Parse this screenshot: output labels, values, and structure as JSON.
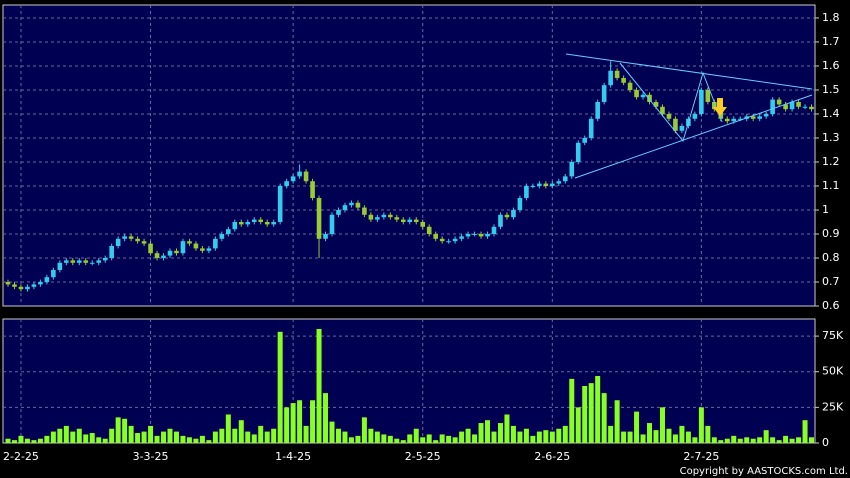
{
  "chart_data": [
    {
      "type": "candlestick",
      "categories": [
        null,
        null,
        "2-2-25",
        null,
        null,
        null,
        null,
        null,
        null,
        null,
        null,
        null,
        null,
        null,
        null,
        null,
        null,
        null,
        null,
        null,
        null,
        null,
        "3-3-25",
        null,
        null,
        null,
        null,
        null,
        null,
        null,
        null,
        null,
        null,
        null,
        null,
        null,
        null,
        null,
        null,
        null,
        null,
        null,
        null,
        null,
        "1-4-25",
        null,
        null,
        null,
        null,
        null,
        null,
        null,
        null,
        null,
        null,
        null,
        null,
        null,
        null,
        null,
        null,
        null,
        null,
        null,
        "2-5-25",
        null,
        null,
        null,
        null,
        null,
        null,
        null,
        null,
        null,
        null,
        null,
        null,
        null,
        null,
        null,
        null,
        null,
        null,
        null,
        "2-6-25",
        null,
        null,
        null,
        null,
        null,
        null,
        null,
        null,
        null,
        null,
        null,
        null,
        null,
        null,
        null,
        null,
        null,
        null,
        null,
        null,
        null,
        null,
        "2-7-25",
        null,
        null,
        null,
        null,
        null,
        null,
        null,
        null,
        null,
        null,
        null,
        null,
        null,
        null,
        null,
        null,
        null
      ],
      "open": [
        0.7,
        0.69,
        0.68,
        0.67,
        0.68,
        0.69,
        0.7,
        0.72,
        0.75,
        0.78,
        0.79,
        0.78,
        0.79,
        0.78,
        0.78,
        0.79,
        0.8,
        0.85,
        0.88,
        0.89,
        0.88,
        0.87,
        0.86,
        0.82,
        0.8,
        0.81,
        0.83,
        0.82,
        0.87,
        0.86,
        0.84,
        0.83,
        0.84,
        0.88,
        0.9,
        0.92,
        0.95,
        0.94,
        0.95,
        0.96,
        0.95,
        0.94,
        0.95,
        1.1,
        1.12,
        1.14,
        1.16,
        1.12,
        1.05,
        0.88,
        0.9,
        0.98,
        1.0,
        1.02,
        1.03,
        1.01,
        0.98,
        0.96,
        0.97,
        0.98,
        0.97,
        0.96,
        0.95,
        0.96,
        0.95,
        0.93,
        0.9,
        0.88,
        0.87,
        0.87,
        0.88,
        0.89,
        0.9,
        0.9,
        0.89,
        0.9,
        0.93,
        0.98,
        0.97,
        1.0,
        1.05,
        1.1,
        1.1,
        1.11,
        1.1,
        1.11,
        1.12,
        1.14,
        1.2,
        1.28,
        1.3,
        1.38,
        1.45,
        1.52,
        1.58,
        1.55,
        1.53,
        1.5,
        1.47,
        1.48,
        1.45,
        1.43,
        1.4,
        1.38,
        1.33,
        1.35,
        1.38,
        1.4,
        1.5,
        1.45,
        1.42,
        1.38,
        1.37,
        1.38,
        1.38,
        1.39,
        1.38,
        1.39,
        1.4,
        1.46,
        1.44,
        1.42,
        1.45,
        1.43,
        1.43
      ],
      "high": [
        0.71,
        0.7,
        0.69,
        0.69,
        0.7,
        0.71,
        0.73,
        0.76,
        0.79,
        0.8,
        0.8,
        0.8,
        0.8,
        0.79,
        0.8,
        0.81,
        0.86,
        0.89,
        0.9,
        0.9,
        0.89,
        0.88,
        0.87,
        0.83,
        0.82,
        0.84,
        0.84,
        0.88,
        0.88,
        0.87,
        0.85,
        0.85,
        0.89,
        0.91,
        0.93,
        0.96,
        0.96,
        0.96,
        0.97,
        0.97,
        0.96,
        0.96,
        1.11,
        1.13,
        1.15,
        1.19,
        1.17,
        1.13,
        1.06,
        0.91,
        0.99,
        1.01,
        1.03,
        1.04,
        1.04,
        1.02,
        0.99,
        0.98,
        0.99,
        0.99,
        0.98,
        0.97,
        0.97,
        0.97,
        0.96,
        0.94,
        0.91,
        0.89,
        0.88,
        0.89,
        0.9,
        0.91,
        0.91,
        0.91,
        0.91,
        0.94,
        0.99,
        0.99,
        1.01,
        1.06,
        1.11,
        1.11,
        1.12,
        1.12,
        1.12,
        1.13,
        1.15,
        1.21,
        1.29,
        1.31,
        1.39,
        1.46,
        1.53,
        1.62,
        1.59,
        1.56,
        1.54,
        1.51,
        1.49,
        1.49,
        1.46,
        1.44,
        1.41,
        1.39,
        1.36,
        1.39,
        1.41,
        1.51,
        1.51,
        1.46,
        1.43,
        1.39,
        1.39,
        1.39,
        1.4,
        1.4,
        1.4,
        1.41,
        1.47,
        1.47,
        1.45,
        1.46,
        1.46,
        1.44,
        1.44
      ],
      "low": [
        0.68,
        0.67,
        0.66,
        0.66,
        0.67,
        0.68,
        0.69,
        0.71,
        0.74,
        0.77,
        0.77,
        0.77,
        0.77,
        0.77,
        0.77,
        0.78,
        0.79,
        0.84,
        0.87,
        0.87,
        0.86,
        0.85,
        0.81,
        0.79,
        0.79,
        0.8,
        0.81,
        0.81,
        0.85,
        0.83,
        0.82,
        0.82,
        0.83,
        0.87,
        0.89,
        0.91,
        0.93,
        0.93,
        0.94,
        0.94,
        0.93,
        0.93,
        0.94,
        1.09,
        1.11,
        1.13,
        1.11,
        1.04,
        0.8,
        0.87,
        0.89,
        0.97,
        0.99,
        1.01,
        1.0,
        0.97,
        0.95,
        0.95,
        0.96,
        0.96,
        0.95,
        0.94,
        0.94,
        0.94,
        0.92,
        0.89,
        0.87,
        0.86,
        0.86,
        0.86,
        0.87,
        0.88,
        0.89,
        0.88,
        0.88,
        0.89,
        0.92,
        0.96,
        0.96,
        0.99,
        1.04,
        1.09,
        1.09,
        1.09,
        1.09,
        1.1,
        1.11,
        1.13,
        1.19,
        1.27,
        1.29,
        1.37,
        1.44,
        1.51,
        1.54,
        1.52,
        1.49,
        1.46,
        1.46,
        1.44,
        1.42,
        1.39,
        1.37,
        1.32,
        1.32,
        1.34,
        1.37,
        1.39,
        1.44,
        1.41,
        1.37,
        1.36,
        1.36,
        1.37,
        1.37,
        1.37,
        1.37,
        1.38,
        1.39,
        1.43,
        1.41,
        1.41,
        1.42,
        1.42,
        1.41
      ],
      "close": [
        0.69,
        0.68,
        0.67,
        0.68,
        0.69,
        0.7,
        0.72,
        0.75,
        0.78,
        0.79,
        0.78,
        0.79,
        0.78,
        0.78,
        0.79,
        0.8,
        0.85,
        0.88,
        0.89,
        0.88,
        0.87,
        0.86,
        0.82,
        0.8,
        0.81,
        0.83,
        0.82,
        0.87,
        0.86,
        0.84,
        0.83,
        0.84,
        0.88,
        0.9,
        0.92,
        0.95,
        0.94,
        0.95,
        0.96,
        0.95,
        0.94,
        0.95,
        1.1,
        1.12,
        1.14,
        1.16,
        1.12,
        1.05,
        0.88,
        0.9,
        0.98,
        1.0,
        1.02,
        1.03,
        1.01,
        0.98,
        0.96,
        0.97,
        0.98,
        0.97,
        0.96,
        0.95,
        0.96,
        0.95,
        0.93,
        0.9,
        0.88,
        0.87,
        0.87,
        0.88,
        0.89,
        0.9,
        0.9,
        0.89,
        0.9,
        0.93,
        0.98,
        0.97,
        1.0,
        1.05,
        1.1,
        1.1,
        1.11,
        1.1,
        1.11,
        1.12,
        1.14,
        1.2,
        1.28,
        1.3,
        1.38,
        1.45,
        1.52,
        1.58,
        1.55,
        1.53,
        1.5,
        1.47,
        1.48,
        1.45,
        1.43,
        1.4,
        1.38,
        1.33,
        1.35,
        1.38,
        1.4,
        1.5,
        1.45,
        1.42,
        1.38,
        1.37,
        1.38,
        1.38,
        1.39,
        1.38,
        1.39,
        1.4,
        1.46,
        1.44,
        1.42,
        1.45,
        1.43,
        1.43,
        1.42
      ],
      "up_color": "#33ccee",
      "down_color": "#99cc33",
      "ylim": [
        0.6,
        1.854
      ],
      "yticks": [
        0.6,
        0.7,
        0.8,
        0.9,
        1,
        1.1,
        1.2,
        1.3,
        1.4,
        1.5,
        1.6,
        1.7,
        1.8
      ],
      "grid": true
    },
    {
      "type": "bar",
      "values": [
        3000,
        2000,
        5000,
        3000,
        2000,
        3000,
        5000,
        8000,
        10000,
        12000,
        8000,
        10000,
        6000,
        7000,
        4000,
        3000,
        10000,
        18000,
        17000,
        12000,
        7000,
        8000,
        12000,
        5000,
        8000,
        10000,
        8000,
        5000,
        4000,
        3000,
        5000,
        2000,
        8000,
        10000,
        20000,
        10000,
        16000,
        8000,
        6000,
        12000,
        8000,
        10000,
        78000,
        25000,
        28000,
        30000,
        12000,
        30000,
        80000,
        35000,
        15000,
        10000,
        8000,
        4000,
        5000,
        18000,
        10000,
        8000,
        6000,
        5000,
        3000,
        2000,
        6000,
        10000,
        4000,
        6000,
        2000,
        6000,
        5000,
        4000,
        8000,
        10000,
        6000,
        14000,
        16000,
        8000,
        14000,
        20000,
        12000,
        8000,
        10000,
        5000,
        8000,
        9000,
        8000,
        10000,
        12000,
        45000,
        25000,
        40000,
        42000,
        47000,
        35000,
        12000,
        30000,
        8000,
        8000,
        22000,
        6000,
        14000,
        9000,
        25000,
        10000,
        6000,
        12000,
        8000,
        4000,
        25000,
        12000,
        4000,
        2000,
        3000,
        5000,
        3000,
        4000,
        3000,
        4000,
        9000,
        4000,
        2000,
        5000,
        3000,
        4000,
        16000,
        4000
      ],
      "color": "#88ff22",
      "ylim": [
        0,
        87000
      ],
      "yticks": [
        0,
        {
          "value": 25000,
          "label": "25K"
        },
        {
          "value": 50000,
          "label": "50K"
        },
        {
          "value": 75000,
          "label": "75K"
        }
      ],
      "grid": true
    }
  ],
  "copyright": "Copyright by AASTOCKS.com Ltd."
}
